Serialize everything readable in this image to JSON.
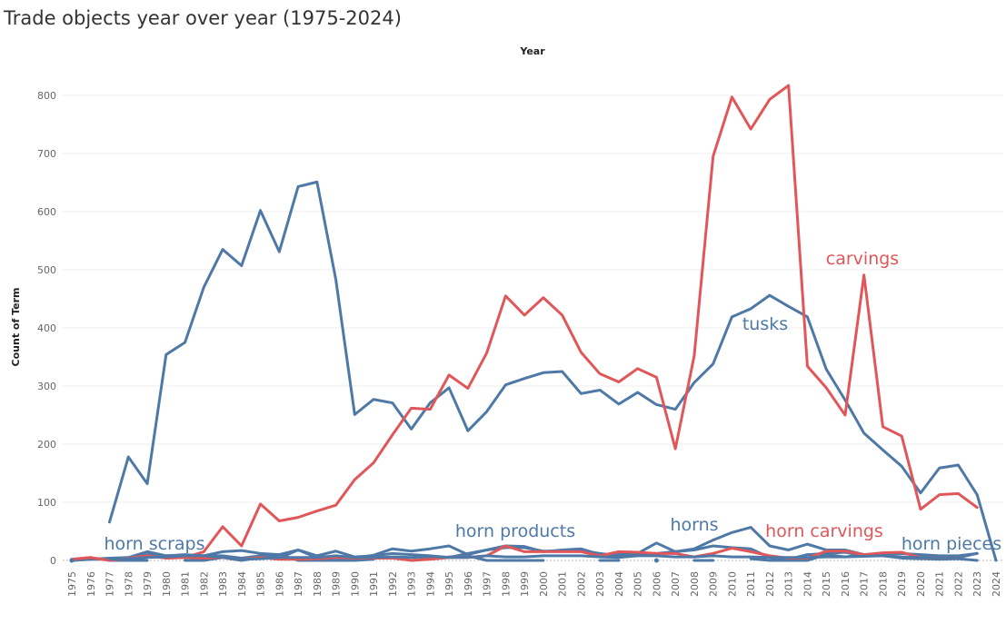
{
  "chart_data": {
    "type": "line",
    "title": "Trade objects year over year (1975-2024)",
    "xlabel": "Year",
    "ylabel": "Count of Term",
    "grid": true,
    "legend": "none",
    "ylim": [
      0,
      820
    ],
    "yticks": [
      0,
      100,
      200,
      300,
      400,
      500,
      600,
      700,
      800
    ],
    "x": [
      1975,
      1976,
      1977,
      1978,
      1979,
      1980,
      1981,
      1982,
      1983,
      1984,
      1985,
      1986,
      1987,
      1988,
      1989,
      1990,
      1991,
      1992,
      1993,
      1994,
      1995,
      1996,
      1997,
      1998,
      1999,
      2000,
      2001,
      2002,
      2003,
      2004,
      2005,
      2006,
      2007,
      2008,
      2009,
      2010,
      2011,
      2012,
      2013,
      2014,
      2015,
      2016,
      2017,
      2018,
      2019,
      2020,
      2021,
      2022,
      2023,
      2024
    ],
    "series": [
      {
        "name": "tusks",
        "color": "#4e79a7",
        "values": [
          null,
          null,
          66,
          178,
          132,
          354,
          375,
          470,
          535,
          507,
          602,
          531,
          643,
          651,
          483,
          251,
          277,
          271,
          226,
          271,
          297,
          223,
          256,
          302,
          313,
          323,
          325,
          287,
          293,
          269,
          289,
          268,
          260,
          306,
          338,
          419,
          433,
          456,
          437,
          419,
          329,
          276,
          219,
          190,
          162,
          116,
          159,
          164,
          113,
          0
        ]
      },
      {
        "name": "carvings",
        "color": "#e15759",
        "values": [
          2,
          5,
          0,
          4,
          8,
          4,
          5,
          15,
          58,
          25,
          97,
          68,
          74,
          85,
          95,
          139,
          168,
          216,
          262,
          260,
          319,
          296,
          357,
          455,
          422,
          452,
          422,
          358,
          321,
          307,
          330,
          315,
          192,
          352,
          695,
          797,
          742,
          793,
          817,
          334,
          297,
          250,
          491,
          230,
          214,
          88,
          113,
          115,
          91,
          null
        ]
      },
      {
        "name": "horn scraps",
        "color": "#4e79a7",
        "values": [
          0,
          null,
          0,
          0,
          0,
          null,
          0,
          0,
          5,
          0,
          5,
          10,
          0,
          0,
          0,
          0,
          2,
          null,
          0,
          3,
          6,
          8,
          0,
          0,
          0,
          0,
          null,
          null,
          0,
          0,
          null,
          0,
          null,
          0,
          0,
          null,
          3,
          0,
          0,
          0,
          10,
          6,
          10,
          8,
          4,
          3,
          2,
          3,
          0,
          null
        ]
      },
      {
        "name": "horn products",
        "color": "#4e79a7",
        "values": [
          0,
          2,
          4,
          5,
          15,
          8,
          9,
          8,
          15,
          17,
          12,
          10,
          18,
          8,
          16,
          6,
          8,
          12,
          10,
          8,
          5,
          12,
          18,
          22,
          22,
          16,
          16,
          17,
          12,
          8,
          12,
          12,
          15,
          18,
          25,
          22,
          20,
          5,
          2,
          10,
          12,
          14,
          8,
          10,
          12,
          10,
          8,
          8,
          12,
          null
        ]
      },
      {
        "name": "horns",
        "color": "#4e79a7",
        "values": [
          0,
          2,
          2,
          5,
          10,
          8,
          10,
          8,
          8,
          4,
          8,
          4,
          18,
          5,
          5,
          4,
          9,
          20,
          16,
          20,
          25,
          10,
          18,
          25,
          24,
          15,
          18,
          20,
          10,
          10,
          12,
          30,
          15,
          20,
          35,
          48,
          57,
          25,
          18,
          28,
          18,
          18,
          10,
          8,
          5,
          5,
          5,
          5,
          null,
          null
        ]
      },
      {
        "name": "horn carvings",
        "color": "#e15759",
        "values": [
          2,
          5,
          0,
          4,
          8,
          4,
          5,
          4,
          5,
          2,
          5,
          2,
          2,
          3,
          5,
          4,
          4,
          4,
          0,
          2,
          5,
          5,
          8,
          25,
          15,
          15,
          15,
          15,
          8,
          15,
          14,
          12,
          12,
          6,
          12,
          21,
          15,
          8,
          4,
          4,
          16,
          16,
          10,
          13,
          14,
          5,
          5,
          5,
          null,
          null
        ]
      },
      {
        "name": "horn pieces",
        "color": "#4e79a7",
        "values": [
          0,
          null,
          2,
          3,
          5,
          6,
          8,
          8,
          5,
          2,
          3,
          5,
          5,
          5,
          8,
          5,
          5,
          6,
          5,
          7,
          5,
          5,
          8,
          6,
          6,
          8,
          8,
          8,
          6,
          5,
          8,
          8,
          6,
          6,
          8,
          6,
          6,
          5,
          5,
          5,
          6,
          6,
          7,
          8,
          6,
          5,
          5,
          5,
          12,
          null
        ]
      }
    ]
  }
}
